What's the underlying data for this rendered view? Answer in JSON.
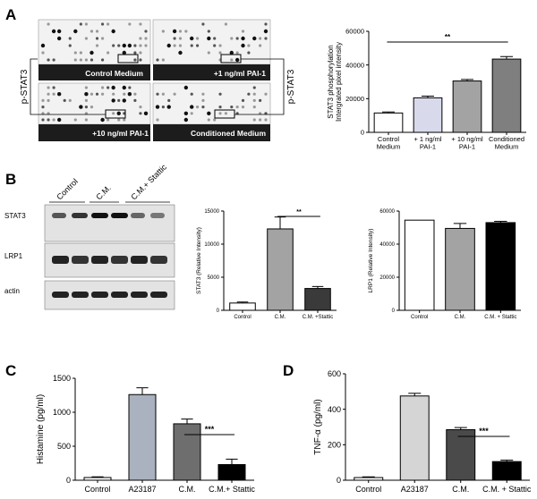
{
  "panels": {
    "A": {
      "letter": "A",
      "blot": {
        "side_label": "p-STAT3",
        "captions": [
          "Control Medium",
          "+1 ng/ml PAI-1",
          "+10 ng/ml PAI-1",
          "Conditioned Medium"
        ]
      }
    },
    "B": {
      "letter": "B",
      "blot": {
        "lane_labels": [
          "Control",
          "C.M.",
          "C.M.+ Stattic"
        ],
        "row_labels": [
          "STAT3",
          "LRP1",
          "actin"
        ]
      }
    },
    "C": {
      "letter": "C"
    },
    "D": {
      "letter": "D"
    }
  },
  "colors": {
    "white": "#ffffff",
    "light_purple": "#d9d9ec",
    "mid_gray": "#a3a3a3",
    "dark_gray": "#7f7f7f",
    "black": "#000000",
    "slate": "#aab1bf",
    "dark": "#6e6e6e",
    "light_gray": "#d5d5d5",
    "charcoal": "#4a4a4a"
  },
  "chart_data": [
    {
      "id": "A",
      "type": "bar",
      "categories": [
        "Control Medium",
        "+ 1 ng/ml PAI-1",
        "+ 10 ng/ml PAI-1",
        "Conditioned Medium"
      ],
      "values": [
        11500,
        20500,
        30500,
        43500
      ],
      "errors": [
        600,
        1000,
        900,
        1500
      ],
      "bar_colors": [
        "#ffffff",
        "#d9d9ec",
        "#a3a3a3",
        "#7f7f7f"
      ],
      "ylabel": "STAT3 phosphorylation Intergrated pixel intensity",
      "ylim": [
        0,
        60000
      ],
      "yticks": [
        0,
        20000,
        40000,
        60000
      ],
      "significance": [
        {
          "from": 0,
          "to": 3,
          "label": "**"
        }
      ]
    },
    {
      "id": "B1",
      "type": "bar",
      "categories": [
        "Control",
        "C.M.",
        "C.M. +Stattic"
      ],
      "values": [
        1100,
        12300,
        3300
      ],
      "errors": [
        150,
        1800,
        300
      ],
      "bar_colors": [
        "#ffffff",
        "#a3a3a3",
        "#3a3a3a"
      ],
      "ylabel": "STAT3 (Relative Intensity)",
      "ylim": [
        0,
        15000
      ],
      "yticks": [
        0,
        5000,
        10000,
        15000
      ],
      "significance": [
        {
          "from": 1,
          "to": 2,
          "label": "**"
        }
      ]
    },
    {
      "id": "B2",
      "type": "bar",
      "categories": [
        "Control",
        "C.M.",
        "C.M. + Stattic"
      ],
      "values": [
        54500,
        49500,
        53000
      ],
      "errors": [
        0,
        3000,
        800
      ],
      "bar_colors": [
        "#ffffff",
        "#a3a3a3",
        "#000000"
      ],
      "ylabel": "LRP1 (Relative Intensity)",
      "ylim": [
        0,
        60000
      ],
      "yticks": [
        0,
        20000,
        40000,
        60000
      ],
      "significance": []
    },
    {
      "id": "C",
      "type": "bar",
      "categories": [
        "Control",
        "A23187",
        "C.M.",
        "C.M.+ Stattic"
      ],
      "values": [
        40,
        1260,
        830,
        230
      ],
      "errors": [
        10,
        100,
        70,
        80
      ],
      "bar_colors": [
        "#ffffff",
        "#aab1bf",
        "#6e6e6e",
        "#000000"
      ],
      "ylabel": "Histamine (pg/ml)",
      "ylim": [
        0,
        1500
      ],
      "yticks": [
        0,
        500,
        1000,
        1500
      ],
      "significance": [
        {
          "from": 2,
          "to": 3,
          "label": "***"
        }
      ]
    },
    {
      "id": "D",
      "type": "bar",
      "categories": [
        "Control",
        "A23187",
        "C.M.",
        "C.M. + Stattic"
      ],
      "values": [
        15,
        475,
        285,
        105
      ],
      "errors": [
        4,
        15,
        12,
        8
      ],
      "bar_colors": [
        "#ffffff",
        "#d5d5d5",
        "#4a4a4a",
        "#000000"
      ],
      "ylabel": "TNF-α (pg/ml)",
      "ylim": [
        0,
        600
      ],
      "yticks": [
        0,
        200,
        400,
        600
      ],
      "significance": [
        {
          "from": 2,
          "to": 3,
          "label": "***"
        }
      ]
    }
  ]
}
